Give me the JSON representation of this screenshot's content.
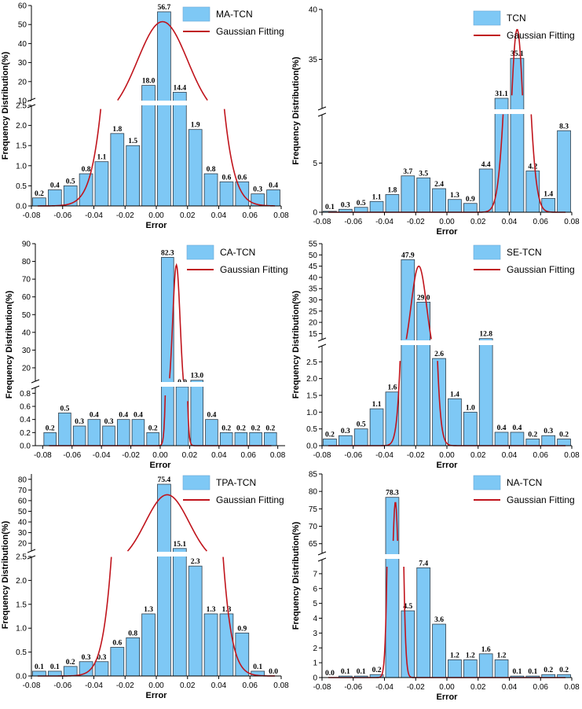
{
  "figure": {
    "colors": {
      "bar_fill": "#7EC8F5",
      "bar_stroke": "#2E3C49",
      "fit_line": "#C0141C",
      "axis": "#000000"
    }
  },
  "chart_data": [
    {
      "type": "bar",
      "legend": {
        "bars": "MA-TCN",
        "line": "Gaussian Fitting",
        "position": "top-right"
      },
      "xlabel": "Error",
      "ylabel": "Frequency Distribution(%)",
      "xlim": [
        -0.08,
        0.08
      ],
      "xticks": [
        "-0.08",
        "-0.06",
        "-0.04",
        "-0.02",
        "0.00",
        "0.02",
        "0.04",
        "0.06",
        "0.08"
      ],
      "y_lower": {
        "lim": [
          0,
          2.5
        ],
        "ticks": [
          "0.0",
          "0.5",
          "1.0",
          "1.5",
          "2.0",
          "2.5"
        ]
      },
      "y_upper": {
        "lim": [
          10,
          60
        ],
        "ticks": [
          "10",
          "20",
          "30",
          "40",
          "50",
          "60"
        ]
      },
      "bins_x": [
        -0.075,
        -0.065,
        -0.055,
        -0.045,
        -0.035,
        -0.025,
        -0.015,
        -0.005,
        0.005,
        0.015,
        0.025,
        0.035,
        0.045,
        0.055,
        0.065,
        0.075
      ],
      "values": [
        0.2,
        0.4,
        0.5,
        0.8,
        1.1,
        1.8,
        1.5,
        18.0,
        56.7,
        14.4,
        1.9,
        0.8,
        0.6,
        0.6,
        0.3,
        0.4
      ],
      "labels": [
        "0.2",
        "0.4",
        "0.5",
        "0.8",
        "1.1",
        "1.8",
        "1.5",
        "18.0",
        "56.7",
        "14.4",
        "1.9",
        "0.8",
        "0.6",
        "0.6",
        "0.3",
        "0.4"
      ],
      "fit": {
        "mu": 0.004,
        "sigma": 0.016,
        "peak": 51.5
      }
    },
    {
      "type": "bar",
      "legend": {
        "bars": "TCN",
        "line": "Gaussian Fitting",
        "position": "top-right"
      },
      "xlabel": "Error",
      "ylabel": "Frequency Distribution(%)",
      "xlim": [
        -0.08,
        0.08
      ],
      "xticks": [
        "-0.08",
        "-0.06",
        "-0.04",
        "-0.02",
        "0.00",
        "0.02",
        "0.04",
        "0.06",
        "0.08"
      ],
      "y_lower": {
        "lim": [
          0,
          10
        ],
        "ticks": [
          "0",
          "5"
        ]
      },
      "y_upper": {
        "lim": [
          30,
          40
        ],
        "ticks": [
          "35",
          "40"
        ]
      },
      "bins_x": [
        -0.075,
        -0.065,
        -0.055,
        -0.045,
        -0.035,
        -0.025,
        -0.015,
        -0.005,
        0.005,
        0.015,
        0.025,
        0.035,
        0.045,
        0.055,
        0.065,
        0.075
      ],
      "values": [
        0.1,
        0.3,
        0.5,
        1.1,
        1.8,
        3.7,
        3.5,
        2.4,
        1.3,
        0.9,
        4.4,
        31.1,
        35.1,
        4.2,
        1.4,
        8.3
      ],
      "labels": [
        "0.1",
        "0.3",
        "0.5",
        "1.1",
        "1.8",
        "3.7",
        "3.5",
        "2.4",
        "1.3",
        "0.9",
        "4.4",
        "31.1",
        "35.1",
        "4.2",
        "1.4",
        "8.3"
      ],
      "fit": {
        "mu": 0.045,
        "sigma": 0.0055,
        "peak": 38.0
      }
    },
    {
      "type": "bar",
      "legend": {
        "bars": "CA-TCN",
        "line": "Gaussian Fitting",
        "position": "top-right"
      },
      "xlabel": "Error",
      "ylabel": "Frequency Distribution(%)",
      "xlim": [
        -0.085,
        0.085
      ],
      "xticks": [
        "-0.08",
        "-0.06",
        "-0.04",
        "-0.02",
        "0.00",
        "0.02",
        "0.04",
        "0.06",
        "0.08"
      ],
      "y_lower": {
        "lim": [
          0,
          0.9
        ],
        "ticks": [
          "0.0",
          "0.2",
          "0.4",
          "0.6",
          "0.8"
        ]
      },
      "y_upper": {
        "lim": [
          12,
          90
        ],
        "ticks": [
          "20",
          "30",
          "40",
          "50",
          "60",
          "70",
          "80",
          "90"
        ]
      },
      "bins_x": [
        -0.075,
        -0.065,
        -0.055,
        -0.045,
        -0.035,
        -0.025,
        -0.015,
        -0.005,
        0.005,
        0.015,
        0.025,
        0.035,
        0.045,
        0.055,
        0.065,
        0.075
      ],
      "values": [
        0.2,
        0.5,
        0.3,
        0.4,
        0.3,
        0.4,
        0.4,
        0.2,
        82.3,
        0.9,
        13.0,
        0.4,
        0.2,
        0.2,
        0.2,
        0.2
      ],
      "labels": [
        "0.2",
        "0.5",
        "0.3",
        "0.4",
        "0.3",
        "0.4",
        "0.4",
        "0.2",
        "82.3",
        "0.9",
        "13.0",
        "0.4",
        "0.2",
        "0.2",
        "0.2",
        "0.2"
      ],
      "fit": {
        "mu": 0.011,
        "sigma": 0.0025,
        "peak": 78.0
      }
    },
    {
      "type": "bar",
      "legend": {
        "bars": "SE-TCN",
        "line": "Gaussian Fitting",
        "position": "top-right"
      },
      "xlabel": "Error",
      "ylabel": "Frequency Distribution(%)",
      "xlim": [
        -0.08,
        0.08
      ],
      "xticks": [
        "-0.08",
        "-0.06",
        "-0.04",
        "-0.02",
        "0.00",
        "0.02",
        "0.04",
        "0.06",
        "0.08"
      ],
      "y_lower": {
        "lim": [
          0,
          3.0
        ],
        "ticks": [
          "0.0",
          "0.5",
          "1.0",
          "1.5",
          "2.0",
          "2.5"
        ]
      },
      "y_upper": {
        "lim": [
          12,
          55
        ],
        "ticks": [
          "15",
          "20",
          "25",
          "30",
          "35",
          "40",
          "45",
          "50",
          "55"
        ]
      },
      "bins_x": [
        -0.075,
        -0.065,
        -0.055,
        -0.045,
        -0.035,
        -0.025,
        -0.015,
        -0.005,
        0.005,
        0.015,
        0.025,
        0.035,
        0.045,
        0.055,
        0.065,
        0.075
      ],
      "values": [
        0.2,
        0.3,
        0.5,
        1.1,
        1.6,
        47.9,
        29.0,
        2.6,
        1.4,
        1.0,
        12.8,
        0.4,
        0.4,
        0.2,
        0.3,
        0.2
      ],
      "labels": [
        "0.2",
        "0.3",
        "0.5",
        "1.1",
        "1.6",
        "47.9",
        "29.0",
        "2.6",
        "1.4",
        "1.0",
        "12.8",
        "0.4",
        "0.4",
        "0.2",
        "0.3",
        "0.2"
      ],
      "fit": {
        "mu": -0.018,
        "sigma": 0.005,
        "peak": 45.0
      }
    },
    {
      "type": "bar",
      "legend": {
        "bars": "TPA-TCN",
        "line": "Gaussian Fitting",
        "position": "top-right"
      },
      "xlabel": "Error",
      "ylabel": "Frequency Distribution(%)",
      "xlim": [
        -0.08,
        0.08
      ],
      "xticks": [
        "-0.08",
        "-0.06",
        "-0.04",
        "-0.02",
        "0.00",
        "0.02",
        "0.04",
        "0.06",
        "0.08"
      ],
      "y_lower": {
        "lim": [
          0,
          2.5
        ],
        "ticks": [
          "0.0",
          "0.5",
          "1.0",
          "1.5",
          "2.0",
          "2.5"
        ]
      },
      "y_upper": {
        "lim": [
          12,
          85
        ],
        "ticks": [
          "20",
          "30",
          "40",
          "50",
          "60",
          "70",
          "80"
        ]
      },
      "bins_x": [
        -0.075,
        -0.065,
        -0.055,
        -0.045,
        -0.035,
        -0.025,
        -0.015,
        -0.005,
        0.005,
        0.015,
        0.025,
        0.035,
        0.045,
        0.055,
        0.065,
        0.075
      ],
      "values": [
        0.1,
        0.1,
        0.2,
        0.3,
        0.3,
        0.6,
        0.8,
        1.3,
        75.4,
        15.1,
        2.3,
        1.3,
        1.3,
        0.9,
        0.1,
        0.0
      ],
      "labels": [
        "0.1",
        "0.1",
        "0.2",
        "0.3",
        "0.3",
        "0.6",
        "0.8",
        "1.3",
        "75.4",
        "15.1",
        "2.3",
        "1.3",
        "1.3",
        "0.9",
        "0.1",
        "0.0"
      ],
      "fit": {
        "mu": 0.007,
        "sigma": 0.014,
        "peak": 65.5
      }
    },
    {
      "type": "bar",
      "legend": {
        "bars": "NA-TCN",
        "line": "Gaussian Fitting",
        "position": "top-right"
      },
      "xlabel": "Error",
      "ylabel": "Frequency Distribution(%)",
      "xlim": [
        -0.08,
        0.08
      ],
      "xticks": [
        "-0.08",
        "-0.06",
        "-0.04",
        "-0.02",
        "0.00",
        "0.02",
        "0.04",
        "0.06",
        "0.08"
      ],
      "y_lower": {
        "lim": [
          0,
          8
        ],
        "ticks": [
          "0",
          "1",
          "2",
          "3",
          "4",
          "5",
          "6",
          "7"
        ]
      },
      "y_upper": {
        "lim": [
          62,
          85
        ],
        "ticks": [
          "65",
          "70",
          "75",
          "80",
          "85"
        ]
      },
      "bins_x": [
        -0.075,
        -0.065,
        -0.055,
        -0.045,
        -0.035,
        -0.025,
        -0.015,
        -0.005,
        0.005,
        0.015,
        0.025,
        0.035,
        0.045,
        0.055,
        0.065,
        0.075
      ],
      "values": [
        0.0,
        0.1,
        0.1,
        0.2,
        78.3,
        4.5,
        7.4,
        3.6,
        1.2,
        1.2,
        1.6,
        1.2,
        0.1,
        0.1,
        0.2,
        0.2
      ],
      "labels": [
        "0.0",
        "0.1",
        "0.1",
        "0.2",
        "78.3",
        "4.5",
        "7.4",
        "3.6",
        "1.2",
        "1.2",
        "1.6",
        "1.2",
        "0.1",
        "0.1",
        "0.2",
        "0.2"
      ],
      "fit": {
        "mu": -0.033,
        "sigma": 0.0025,
        "peak": 77.0
      }
    }
  ]
}
